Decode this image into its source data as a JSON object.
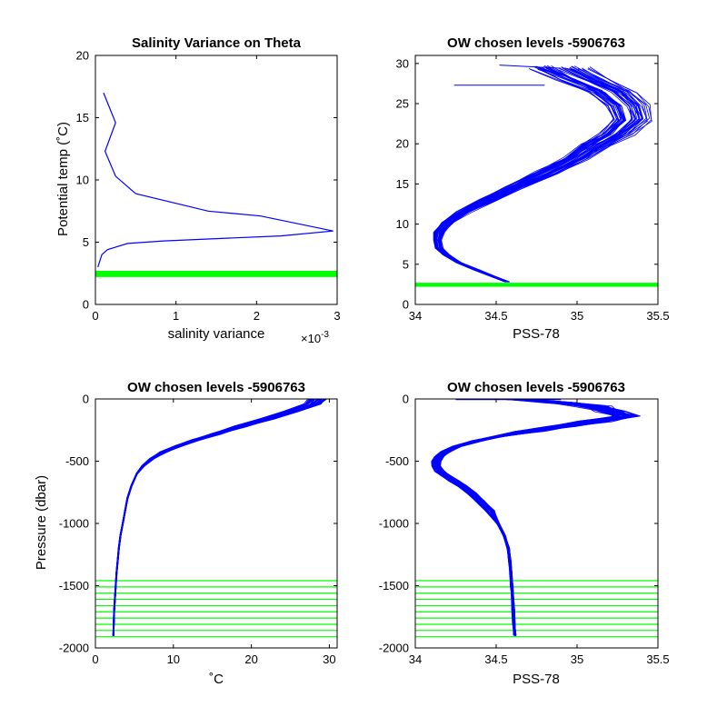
{
  "figure": {
    "background": "#ffffff"
  },
  "colors": {
    "profile": "#0000ff",
    "levels": "#00ff00",
    "axis": "#000000"
  },
  "chart_data": [
    {
      "type": "line",
      "title": "Salinity Variance on Theta",
      "xlabel": "salinity variance",
      "x_exponent_label": "×10",
      "x_exponent_power": "-3",
      "ylabel": "Potential temp (˚C)",
      "xlim": [
        0,
        0.003
      ],
      "ylim": [
        0,
        20
      ],
      "xticks": [
        0,
        0.001,
        0.002,
        0.003
      ],
      "xtick_labels": [
        "0",
        "1",
        "2",
        "3"
      ],
      "yticks": [
        0,
        5,
        10,
        15,
        20
      ],
      "ytick_labels": [
        "0",
        "5",
        "10",
        "15",
        "20"
      ],
      "series": [
        {
          "x": [
            0.0001,
            0.00025,
            0.00012,
            0.00025,
            0.0005,
            0.0014,
            0.00205,
            0.00295,
            0.0023,
            0.00085,
            0.0004,
            0.00015,
            8e-05,
            3e-05
          ],
          "y": [
            17.0,
            14.6,
            12.3,
            10.3,
            8.9,
            7.5,
            7.1,
            5.9,
            5.5,
            5.1,
            4.9,
            4.4,
            4.0,
            3.0
          ]
        }
      ],
      "levels": {
        "y": [
          2.2,
          2.3,
          2.4,
          2.5,
          2.6,
          2.7
        ],
        "style": "band"
      }
    },
    {
      "type": "line",
      "title": "OW chosen levels -5906763",
      "xlabel": "PSS-78",
      "ylabel": "",
      "xlim": [
        34,
        35.5
      ],
      "ylim": [
        0,
        31
      ],
      "xticks": [
        34,
        34.5,
        35,
        35.5
      ],
      "xtick_labels": [
        "34",
        "34.5",
        "35",
        "35.5"
      ],
      "yticks": [
        0,
        5,
        10,
        15,
        20,
        25,
        30
      ],
      "ytick_labels": [
        "0",
        "5",
        "10",
        "15",
        "20",
        "25",
        "30"
      ],
      "profile": {
        "salinity": [
          34.57,
          34.48,
          34.38,
          34.27,
          34.19,
          34.15,
          34.14,
          34.15,
          34.2,
          34.3,
          34.45,
          34.62,
          34.82,
          35.0,
          35.12,
          35.25,
          35.35,
          35.32,
          35.22,
          35.05,
          34.9
        ],
        "theta": [
          2.8,
          3.5,
          4.3,
          5.2,
          6.2,
          7.0,
          8.0,
          9.0,
          10.2,
          11.5,
          13.0,
          14.6,
          16.4,
          18.2,
          19.8,
          21.2,
          23.0,
          24.8,
          26.5,
          28.0,
          29.5
        ]
      },
      "profile_count": 45,
      "extra_lines": [
        {
          "x": [
            34.24,
            34.8
          ],
          "y": [
            27.3,
            27.3
          ]
        },
        {
          "x": [
            34.52,
            34.9
          ],
          "y": [
            29.8,
            29.4
          ]
        }
      ],
      "levels": {
        "y": [
          2.2,
          2.3,
          2.4,
          2.5,
          2.6,
          2.7
        ],
        "style": "band"
      }
    },
    {
      "type": "line",
      "title": "OW chosen levels -5906763",
      "xlabel": "˚C",
      "ylabel": "Pressure (dbar)",
      "xlim": [
        0,
        31
      ],
      "ylim": [
        -2000,
        0
      ],
      "xticks": [
        0,
        10,
        20,
        30
      ],
      "xtick_labels": [
        "0",
        "10",
        "20",
        "30"
      ],
      "yticks": [
        -2000,
        -1500,
        -1000,
        -500,
        0
      ],
      "ytick_labels": [
        "-2000",
        "-1500",
        "-1000",
        "-500",
        "0"
      ],
      "profile": {
        "pressure": [
          0,
          -40,
          -100,
          -160,
          -220,
          -280,
          -330,
          -380,
          -430,
          -480,
          -540,
          -600,
          -700,
          -800,
          -900,
          -1000,
          -1100,
          -1200,
          -1300,
          -1400,
          -1500,
          -1600,
          -1700,
          -1800,
          -1900
        ],
        "temperature": [
          28.5,
          27.8,
          25.0,
          22.0,
          18.5,
          15.5,
          12.8,
          10.5,
          8.6,
          7.2,
          6.1,
          5.3,
          4.6,
          4.1,
          3.8,
          3.5,
          3.2,
          3.0,
          2.85,
          2.7,
          2.6,
          2.5,
          2.4,
          2.35,
          2.3
        ]
      },
      "profile_count": 45,
      "levels": {
        "y": [
          -1460,
          -1510,
          -1560,
          -1610,
          -1660,
          -1710,
          -1760,
          -1810,
          -1860,
          -1910
        ],
        "style": "lines"
      }
    },
    {
      "type": "line",
      "title": "OW chosen levels -5906763",
      "xlabel": "PSS-78",
      "ylabel": "",
      "xlim": [
        34,
        35.5
      ],
      "ylim": [
        -2000,
        0
      ],
      "xticks": [
        34,
        34.5,
        35,
        35.5
      ],
      "xtick_labels": [
        "34",
        "34.5",
        "35",
        "35.5"
      ],
      "yticks": [
        -2000,
        -1500,
        -1000,
        -500,
        0
      ],
      "ytick_labels": [
        "-2000",
        "-1500",
        "-1000",
        "-500",
        "0"
      ],
      "profile": {
        "pressure": [
          0,
          -30,
          -60,
          -100,
          -140,
          -180,
          -220,
          -260,
          -300,
          -340,
          -380,
          -420,
          -460,
          -500,
          -540,
          -580,
          -620,
          -660,
          -700,
          -760,
          -820,
          -900,
          -1000,
          -1100,
          -1200,
          -1300,
          -1400,
          -1500,
          -1600,
          -1700,
          -1800,
          -1900
        ],
        "salinity": [
          34.6,
          34.9,
          35.1,
          35.2,
          35.3,
          35.1,
          34.9,
          34.7,
          34.52,
          34.37,
          34.26,
          34.19,
          34.15,
          34.13,
          34.13,
          34.15,
          34.19,
          34.24,
          34.29,
          34.35,
          34.4,
          34.46,
          34.51,
          34.55,
          34.575,
          34.585,
          34.59,
          34.595,
          34.6,
          34.605,
          34.61,
          34.615
        ]
      },
      "profile_count": 45,
      "extra_lines": [
        {
          "x": [
            34.25,
            34.9
          ],
          "y": [
            -5,
            -5
          ]
        }
      ],
      "levels": {
        "y": [
          -1460,
          -1510,
          -1560,
          -1610,
          -1660,
          -1710,
          -1760,
          -1810,
          -1860,
          -1910
        ],
        "style": "lines"
      }
    }
  ]
}
